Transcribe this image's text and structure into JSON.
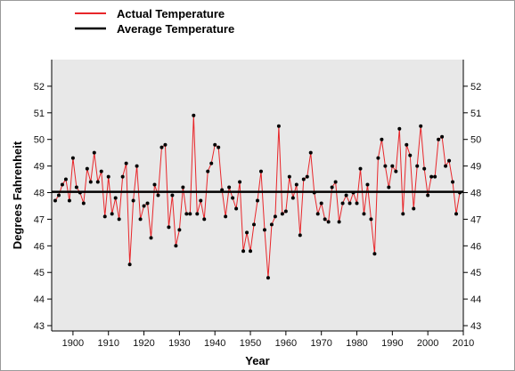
{
  "chart_data": {
    "type": "line",
    "xlabel": "Year",
    "ylabel": "Degrees Fahrenheit",
    "xlim": [
      1894,
      2010
    ],
    "ylim": [
      42.8,
      53
    ],
    "x_ticks": [
      1900,
      1910,
      1920,
      1930,
      1940,
      1950,
      1960,
      1970,
      1980,
      1990,
      2000,
      2010
    ],
    "y_ticks": [
      43,
      44,
      45,
      46,
      47,
      48,
      49,
      50,
      51,
      52
    ],
    "grid": false,
    "background": "#e8e8e8",
    "legend_position": "top-left",
    "colors": {
      "actual": "#e8262a",
      "average": "#000000",
      "markers": "#000000"
    },
    "series": [
      {
        "name": "Actual Temperature",
        "x": [
          1895,
          1896,
          1897,
          1898,
          1899,
          1900,
          1901,
          1902,
          1903,
          1904,
          1905,
          1906,
          1907,
          1908,
          1909,
          1910,
          1911,
          1912,
          1913,
          1914,
          1915,
          1916,
          1917,
          1918,
          1919,
          1920,
          1921,
          1922,
          1923,
          1924,
          1925,
          1926,
          1927,
          1928,
          1929,
          1930,
          1931,
          1932,
          1933,
          1934,
          1935,
          1936,
          1937,
          1938,
          1939,
          1940,
          1941,
          1942,
          1943,
          1944,
          1945,
          1946,
          1947,
          1948,
          1949,
          1950,
          1951,
          1952,
          1953,
          1954,
          1955,
          1956,
          1957,
          1958,
          1959,
          1960,
          1961,
          1962,
          1963,
          1964,
          1965,
          1966,
          1967,
          1968,
          1969,
          1970,
          1971,
          1972,
          1973,
          1974,
          1975,
          1976,
          1977,
          1978,
          1979,
          1980,
          1981,
          1982,
          1983,
          1984,
          1985,
          1986,
          1987,
          1988,
          1989,
          1990,
          1991,
          1992,
          1993,
          1994,
          1995,
          1996,
          1997,
          1998,
          1999,
          2000,
          2001,
          2002,
          2003,
          2004,
          2005,
          2006,
          2007,
          2008,
          2009
        ],
        "y": [
          47.7,
          47.9,
          48.3,
          48.5,
          47.7,
          49.3,
          48.2,
          48.0,
          47.6,
          48.9,
          48.4,
          49.5,
          48.4,
          48.8,
          47.1,
          48.6,
          47.2,
          47.8,
          47.0,
          48.6,
          49.1,
          45.3,
          47.7,
          49.0,
          47.0,
          47.5,
          47.6,
          46.3,
          48.3,
          47.9,
          49.7,
          49.8,
          46.7,
          47.9,
          46.0,
          46.6,
          48.2,
          47.2,
          47.2,
          50.9,
          47.2,
          47.7,
          47.0,
          48.8,
          49.1,
          49.8,
          49.7,
          48.1,
          47.1,
          48.2,
          47.8,
          47.4,
          48.4,
          45.8,
          46.5,
          45.8,
          46.8,
          47.7,
          48.8,
          46.6,
          44.8,
          46.8,
          47.1,
          50.5,
          47.2,
          47.3,
          48.6,
          47.8,
          48.3,
          46.4,
          48.5,
          48.6,
          49.5,
          48.0,
          47.2,
          47.6,
          47.0,
          46.9,
          48.2,
          48.4,
          46.9,
          47.6,
          47.9,
          47.6,
          48.0,
          47.6,
          48.9,
          47.2,
          48.3,
          47.0,
          45.7,
          49.3,
          50.0,
          49.0,
          48.2,
          49.0,
          48.8,
          50.4,
          47.2,
          49.8,
          49.4,
          47.4,
          49.0,
          50.5,
          48.9,
          47.9,
          48.6,
          48.6,
          50.0,
          50.1,
          49.0,
          49.2,
          48.4,
          47.2,
          48.0
        ]
      },
      {
        "name": "Average Temperature",
        "x": [
          1894,
          2010
        ],
        "y": [
          48.03,
          48.03
        ]
      }
    ]
  }
}
